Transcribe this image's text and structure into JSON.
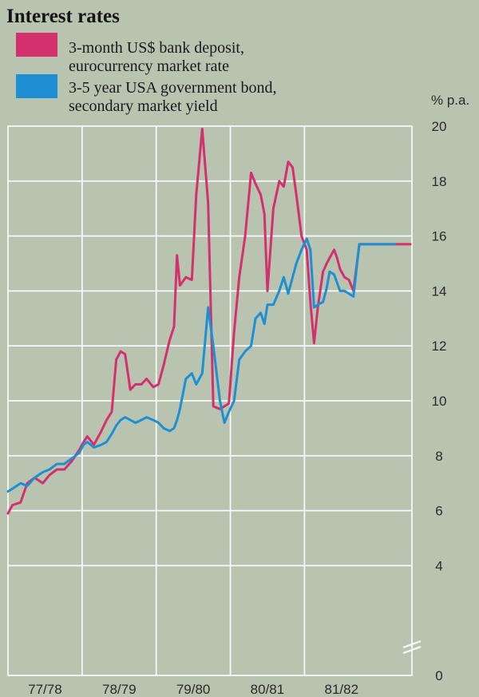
{
  "chart_data": {
    "type": "line",
    "title": "Interest rates",
    "ylabel": "% p.a.",
    "ylim": [
      0,
      20
    ],
    "yticks": [
      0,
      4,
      6,
      8,
      10,
      12,
      14,
      16,
      18,
      20
    ],
    "xlim": [
      0,
      5.45
    ],
    "x_categories": [
      "77/78",
      "78/79",
      "79/80",
      "80/81",
      "81/82"
    ],
    "series": [
      {
        "name": "3-month US$ bank deposit, eurocurrency market rate",
        "color": "#d4306e",
        "x": [
          0.0,
          0.06,
          0.17,
          0.26,
          0.36,
          0.47,
          0.56,
          0.66,
          0.76,
          0.86,
          0.96,
          1.02,
          1.07,
          1.16,
          1.26,
          1.33,
          1.4,
          1.46,
          1.52,
          1.58,
          1.65,
          1.72,
          1.8,
          1.87,
          1.96,
          2.03,
          2.1,
          2.18,
          2.24,
          2.28,
          2.32,
          2.4,
          2.48,
          2.54,
          2.62,
          2.7,
          2.77,
          2.86,
          2.92,
          2.98,
          3.05,
          3.12,
          3.2,
          3.28,
          3.34,
          3.41,
          3.46,
          3.5,
          3.58,
          3.66,
          3.72,
          3.78,
          3.84,
          3.89,
          3.96,
          4.03,
          4.08,
          4.13,
          4.18,
          4.25,
          4.3,
          4.34,
          4.4,
          4.44,
          4.48,
          4.54,
          4.6,
          4.66,
          4.74,
          4.82,
          4.88,
          4.94,
          5.0,
          5.07,
          5.14,
          5.22,
          5.29,
          5.36,
          5.43
        ],
        "values": [
          5.9,
          6.2,
          6.3,
          7.0,
          7.2,
          7.0,
          7.3,
          7.5,
          7.5,
          7.8,
          8.2,
          8.5,
          8.7,
          8.4,
          8.9,
          9.3,
          9.6,
          11.5,
          11.8,
          11.7,
          10.4,
          10.6,
          10.6,
          10.8,
          10.5,
          10.6,
          11.3,
          12.2,
          12.7,
          15.3,
          14.2,
          14.5,
          14.4,
          17.5,
          19.9,
          17.2,
          9.8,
          9.7,
          9.8,
          9.9,
          12.5,
          14.5,
          16.0,
          18.3,
          17.9,
          17.5,
          16.8,
          14.0,
          17.0,
          18.0,
          17.8,
          18.7,
          18.5,
          17.5,
          16.0,
          15.5,
          13.6,
          12.1,
          13.4,
          14.7,
          15.0,
          15.2,
          15.5,
          15.2,
          14.8,
          14.5,
          14.4,
          14.0,
          15.7,
          15.7,
          15.7,
          15.7,
          15.7,
          15.7,
          15.7,
          15.7,
          15.7,
          15.7,
          15.7
        ]
      },
      {
        "name": "3-5 year USA government bond, secondary market yield",
        "color": "#1e8fd2",
        "x": [
          0.0,
          0.06,
          0.17,
          0.26,
          0.36,
          0.47,
          0.56,
          0.66,
          0.76,
          0.86,
          0.96,
          1.02,
          1.07,
          1.16,
          1.26,
          1.33,
          1.4,
          1.46,
          1.52,
          1.58,
          1.65,
          1.72,
          1.8,
          1.87,
          1.96,
          2.03,
          2.1,
          2.18,
          2.24,
          2.28,
          2.32,
          2.4,
          2.48,
          2.54,
          2.62,
          2.7,
          2.77,
          2.86,
          2.92,
          2.98,
          3.05,
          3.12,
          3.2,
          3.28,
          3.34,
          3.41,
          3.46,
          3.5,
          3.58,
          3.66,
          3.72,
          3.78,
          3.84,
          3.89,
          3.96,
          4.03,
          4.08,
          4.13,
          4.18,
          4.25,
          4.3,
          4.34,
          4.4,
          4.44,
          4.48,
          4.54,
          4.6,
          4.66,
          4.74,
          4.82,
          4.88,
          4.94,
          5.0,
          5.07,
          5.14,
          5.22
        ],
        "values": [
          6.7,
          6.8,
          7.0,
          6.9,
          7.2,
          7.4,
          7.5,
          7.7,
          7.7,
          7.9,
          8.1,
          8.4,
          8.5,
          8.3,
          8.4,
          8.5,
          8.8,
          9.1,
          9.3,
          9.4,
          9.3,
          9.2,
          9.3,
          9.4,
          9.3,
          9.2,
          9.0,
          8.9,
          9.0,
          9.3,
          9.7,
          10.8,
          11.0,
          10.6,
          11.0,
          13.4,
          12.0,
          10.0,
          9.2,
          9.6,
          10.0,
          11.5,
          11.8,
          12.0,
          13.0,
          13.2,
          12.8,
          13.5,
          13.5,
          14.0,
          14.5,
          13.9,
          14.5,
          15.0,
          15.5,
          15.9,
          15.5,
          13.4,
          13.5,
          13.6,
          14.1,
          14.7,
          14.6,
          14.3,
          14.0,
          14.0,
          13.9,
          13.8,
          15.7,
          15.7,
          15.7,
          15.7,
          15.7,
          15.7,
          15.7,
          15.7
        ]
      }
    ]
  }
}
